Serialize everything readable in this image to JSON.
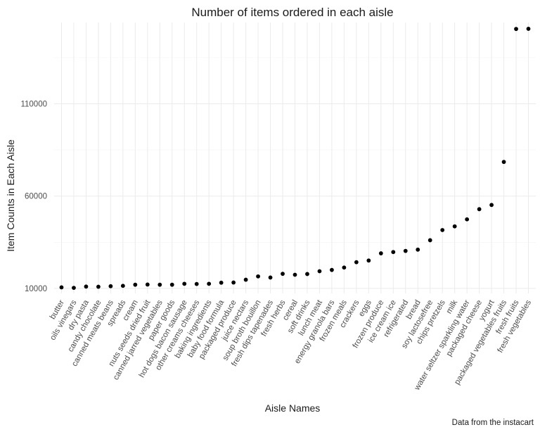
{
  "chart_data": {
    "type": "scatter",
    "title": "Number of items ordered in each aisle",
    "xlabel": "Aisle Names",
    "ylabel": "Item Counts in Each Aisle",
    "caption": "Data from the instacart",
    "y_ticks": [
      10000,
      60000,
      110000
    ],
    "y_tick_labels": [
      "10000",
      "60000",
      "110000"
    ],
    "ylim": [
      7300,
      154000
    ],
    "grid": true,
    "categories": [
      "butter",
      "oils vinegars",
      "dry pasta",
      "candy chocolate",
      "canned meats beans",
      "spreads",
      "cream",
      "nuts seeds dried fruit",
      "canned jarred vegetables",
      "paper goods",
      "hot dogs bacon sausage",
      "other creams cheeses",
      "baking ingredients",
      "baby food formula",
      "packaged produce",
      "juice nectars",
      "soup broth bouillon",
      "fresh dips tapenades",
      "fresh herbs",
      "cereal",
      "soft drinks",
      "lunch meat",
      "energy granola bars",
      "frozen meals",
      "crackers",
      "eggs",
      "frozen produce",
      "ice cream ice",
      "refrigerated",
      "bread",
      "soy lactosefree",
      "chips pretzels",
      "milk",
      "water seltzer sparkling water",
      "packaged cheese",
      "yogurt",
      "packaged vegetables fruits",
      "fresh fruits",
      "fresh vegetables"
    ],
    "values": [
      10575,
      10300,
      11000,
      10900,
      11200,
      11400,
      12000,
      12100,
      12000,
      12000,
      12500,
      12400,
      12500,
      13100,
      13200,
      14700,
      16500,
      15900,
      17900,
      17400,
      17800,
      19300,
      20000,
      21300,
      24200,
      25100,
      29000,
      29700,
      30300,
      31000,
      36100,
      41600,
      43600,
      47400,
      52900,
      55200,
      78500,
      150500,
      150600
    ]
  }
}
